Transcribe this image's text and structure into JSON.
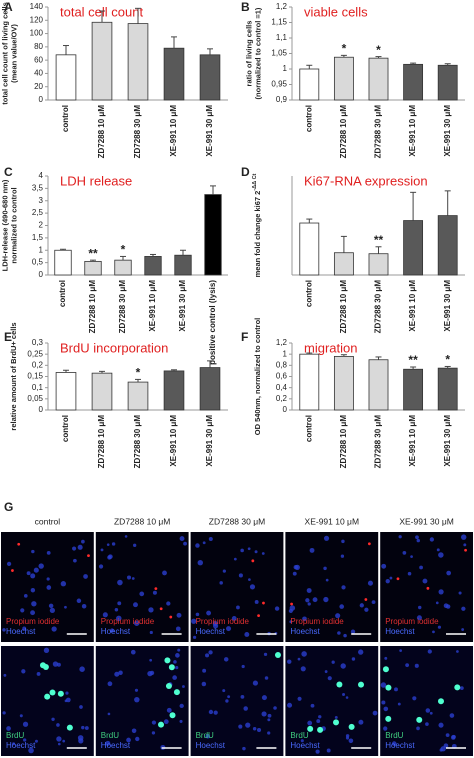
{
  "chart_data": [
    {
      "type": "bar",
      "panel": "A",
      "title": "total cell count",
      "ylabel": [
        "total cell count of living cells",
        "(mean value/OV)"
      ],
      "categories": [
        "control",
        "ZD7288 10 μM",
        "ZD7288 30 μM",
        "XE-991 10 μM",
        "XE-991 30 μM"
      ],
      "values": [
        68,
        117,
        115,
        78,
        68
      ],
      "errors": [
        14,
        17,
        23,
        17,
        9
      ],
      "colors": [
        "#ffffff",
        "#d9d9d9",
        "#d9d9d9",
        "#595959",
        "#595959"
      ],
      "significance": [
        null,
        null,
        null,
        null,
        null
      ],
      "ylim": [
        0,
        140
      ],
      "yticks": [
        0,
        20,
        40,
        60,
        80,
        100,
        120,
        140
      ]
    },
    {
      "type": "bar",
      "panel": "B",
      "title": "viable cells",
      "ylabel": [
        "ratio of living cells",
        "(normalized to control =1)"
      ],
      "categories": [
        "control",
        "ZD7288 10 μM",
        "ZD7288 30 μM",
        "XE-991 10 μM",
        "XE-991 30 μM"
      ],
      "values": [
        1.0,
        1.038,
        1.035,
        1.015,
        1.012
      ],
      "errors": [
        0.012,
        0.006,
        0.005,
        0.004,
        0.005
      ],
      "colors": [
        "#ffffff",
        "#d9d9d9",
        "#d9d9d9",
        "#595959",
        "#595959"
      ],
      "significance": [
        null,
        "*",
        "*",
        null,
        null
      ],
      "ylim": [
        0.9,
        1.2
      ],
      "yticks": [
        {
          "value": 0.9,
          "label": "0,9"
        },
        {
          "value": 0.95,
          "label": "0,95"
        },
        1,
        {
          "value": 1.05,
          "label": "1,05"
        },
        {
          "value": 1.1,
          "label": "1,1"
        },
        {
          "value": 1.15,
          "label": "1,15"
        },
        {
          "value": 1.2,
          "label": "1,2"
        }
      ]
    },
    {
      "type": "bar",
      "panel": "C",
      "title": "LDH release",
      "ylabel": [
        "LDH-release (490-680 nm)",
        "normalized to control"
      ],
      "categories": [
        "control",
        "ZD7288 10 μM",
        "ZD7288 30 μM",
        "XE-991 10 μM",
        "XE-991 30 μM",
        "positive control (lysis)"
      ],
      "values": [
        1.0,
        0.55,
        0.6,
        0.75,
        0.8,
        3.25
      ],
      "errors": [
        0.04,
        0.05,
        0.15,
        0.08,
        0.2,
        0.35
      ],
      "colors": [
        "#ffffff",
        "#d9d9d9",
        "#d9d9d9",
        "#595959",
        "#595959",
        "#000000"
      ],
      "significance": [
        null,
        "**",
        "*",
        null,
        null,
        null
      ],
      "ylim": [
        0,
        4
      ],
      "yticks": [
        0,
        {
          "value": 0.5,
          "label": "0,5"
        },
        1,
        {
          "value": 1.5,
          "label": "1,5"
        },
        2,
        {
          "value": 2.5,
          "label": "2,5"
        },
        3,
        {
          "value": 3.5,
          "label": "3,5"
        },
        4
      ]
    },
    {
      "type": "bar",
      "panel": "D",
      "title": "Ki67-RNA expression",
      "ylabel": [
        "mean fold change ki67 2"
      ],
      "ylabel_superscript": "-ΔΔ Ct",
      "categories": [
        "control",
        "ZD7288 10 μM",
        "ZD7288 30 μM",
        "XE-991 10 μM",
        "XE-991 30 μM"
      ],
      "values": [
        1.05,
        0.45,
        0.43,
        1.1,
        1.2
      ],
      "errors": [
        0.08,
        0.33,
        0.14,
        0.57,
        0.5
      ],
      "colors": [
        "#ffffff",
        "#d9d9d9",
        "#d9d9d9",
        "#595959",
        "#595959"
      ],
      "significance": [
        null,
        null,
        "**",
        null,
        null
      ],
      "ylim": [
        0,
        2
      ]
    },
    {
      "type": "bar",
      "panel": "E",
      "title": "BrdU incorporation",
      "ylabel": [
        "relative amount of BrdU+ cells"
      ],
      "categories": [
        "control",
        "ZD7288 10 μM",
        "ZD7288 30 μM",
        "XE-991 10 μM",
        "XE-991 30 μM"
      ],
      "values": [
        0.168,
        0.165,
        0.125,
        0.175,
        0.19
      ],
      "errors": [
        0.01,
        0.008,
        0.012,
        0.005,
        0.03
      ],
      "colors": [
        "#ffffff",
        "#d9d9d9",
        "#d9d9d9",
        "#595959",
        "#595959"
      ],
      "significance": [
        null,
        null,
        "*",
        null,
        null
      ],
      "ylim": [
        0,
        0.3
      ],
      "yticks": [
        0,
        {
          "value": 0.05,
          "label": "0,05"
        },
        {
          "value": 0.1,
          "label": "0,1"
        },
        {
          "value": 0.15,
          "label": "0,15"
        },
        {
          "value": 0.2,
          "label": "0,2"
        },
        {
          "value": 0.25,
          "label": "0,25"
        },
        {
          "value": 0.3,
          "label": "0,3"
        }
      ]
    },
    {
      "type": "bar",
      "panel": "F",
      "title": "migration",
      "ylabel": [
        "OD 540nm, normalized to control"
      ],
      "categories": [
        "control",
        "ZD7288 10 μM",
        "ZD7288 30 μM",
        "XE-991 10 μM",
        "XE-991 30 μM"
      ],
      "values": [
        1.0,
        0.96,
        0.9,
        0.73,
        0.75
      ],
      "errors": [
        0.02,
        0.03,
        0.05,
        0.04,
        0.03
      ],
      "colors": [
        "#ffffff",
        "#d9d9d9",
        "#d9d9d9",
        "#595959",
        "#595959"
      ],
      "significance": [
        null,
        null,
        null,
        "**",
        "*"
      ],
      "ylim": [
        0,
        1.2
      ],
      "yticks": [
        0,
        {
          "value": 0.2,
          "label": "0,2"
        },
        {
          "value": 0.4,
          "label": "0,4"
        },
        {
          "value": 0.6,
          "label": "0,6"
        },
        {
          "value": 0.8,
          "label": "0,8"
        },
        1,
        {
          "value": 1.2,
          "label": "1,2"
        }
      ]
    }
  ],
  "figure_g": {
    "panel": "G",
    "columns": [
      "control",
      "ZD7288 10 μM",
      "ZD7288 30 μM",
      "XE-991 10 μM",
      "XE-991 30 μM"
    ],
    "rows": [
      {
        "stain": "Propium iodide",
        "counterstain": "Hoechst"
      },
      {
        "stain": "BrdU",
        "counterstain": "Hoechst"
      }
    ]
  }
}
